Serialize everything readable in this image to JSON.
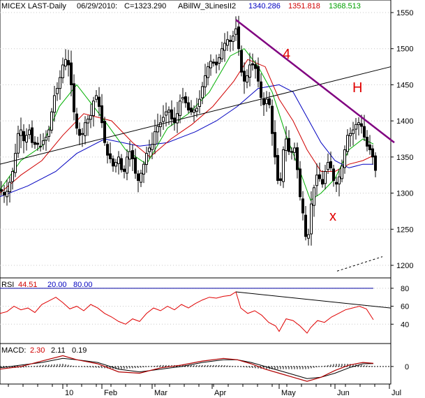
{
  "header": {
    "symbol": "MICEX LAST-Daily",
    "date": "06/29/2010:",
    "close": "C=1323.290",
    "indicator_name": "ABillW_3LinesII2",
    "ind_blue": "1340.286",
    "ind_red": "1351.818",
    "ind_green": "1368.513"
  },
  "rsi_header": {
    "name": "RSI",
    "value": "44.51",
    "lower": "20.00",
    "upper": "80.00"
  },
  "macd_header": {
    "name": "MACD:",
    "macd": "2.30",
    "signal": "2.11",
    "hist": "0.19"
  },
  "colors": {
    "candle": "#000000",
    "ma_green": "#00b000",
    "ma_red": "#d00000",
    "ma_blue": "#0000c0",
    "trendline_resistance": "#800080",
    "annotation": "#e00000",
    "rsi_line": "#e00000",
    "rsi_upper_line": "#0000a0",
    "macd_line": "#b00000",
    "grid": "#c8c8c8"
  },
  "annotations": [
    "4",
    "H",
    "x"
  ],
  "chart_data": [
    {
      "type": "candlestick",
      "ylim": [
        1200,
        1550
      ],
      "y_ticks": [
        "1550",
        "1500",
        "1450",
        "1400",
        "1350",
        "1300",
        "1250",
        "1200"
      ],
      "x_ticks": [
        "10",
        "Feb",
        "Mar",
        "Apr",
        "May",
        "Jun",
        "Jul"
      ],
      "close_path": [
        [
          0,
          1305
        ],
        [
          4,
          1300
        ],
        [
          8,
          1295
        ],
        [
          12,
          1310
        ],
        [
          16,
          1320
        ],
        [
          20,
          1340
        ],
        [
          24,
          1370
        ],
        [
          28,
          1395
        ],
        [
          32,
          1380
        ],
        [
          36,
          1365
        ],
        [
          40,
          1395
        ],
        [
          44,
          1380
        ],
        [
          48,
          1360
        ],
        [
          52,
          1375
        ],
        [
          56,
          1360
        ],
        [
          60,
          1370
        ],
        [
          64,
          1375
        ],
        [
          68,
          1380
        ],
        [
          72,
          1395
        ],
        [
          76,
          1430
        ],
        [
          80,
          1440
        ],
        [
          84,
          1450
        ],
        [
          88,
          1470
        ],
        [
          92,
          1485
        ],
        [
          96,
          1485
        ],
        [
          100,
          1470
        ],
        [
          104,
          1430
        ],
        [
          108,
          1395
        ],
        [
          112,
          1385
        ],
        [
          116,
          1375
        ],
        [
          120,
          1390
        ],
        [
          124,
          1405
        ],
        [
          128,
          1400
        ],
        [
          132,
          1415
        ],
        [
          136,
          1440
        ],
        [
          140,
          1430
        ],
        [
          144,
          1410
        ],
        [
          148,
          1385
        ],
        [
          152,
          1355
        ],
        [
          156,
          1350
        ],
        [
          160,
          1345
        ],
        [
          164,
          1330
        ],
        [
          168,
          1355
        ],
        [
          172,
          1345
        ],
        [
          176,
          1320
        ],
        [
          180,
          1340
        ],
        [
          184,
          1360
        ],
        [
          188,
          1355
        ],
        [
          192,
          1340
        ],
        [
          196,
          1315
        ],
        [
          200,
          1320
        ],
        [
          204,
          1335
        ],
        [
          208,
          1345
        ],
        [
          212,
          1365
        ],
        [
          216,
          1360
        ],
        [
          220,
          1375
        ],
        [
          224,
          1395
        ],
        [
          228,
          1390
        ],
        [
          232,
          1405
        ],
        [
          236,
          1405
        ],
        [
          240,
          1420
        ],
        [
          244,
          1410
        ],
        [
          248,
          1395
        ],
        [
          252,
          1400
        ],
        [
          256,
          1420
        ],
        [
          260,
          1435
        ],
        [
          264,
          1430
        ],
        [
          268,
          1420
        ],
        [
          272,
          1410
        ],
        [
          276,
          1415
        ],
        [
          280,
          1415
        ],
        [
          284,
          1420
        ],
        [
          288,
          1440
        ],
        [
          292,
          1455
        ],
        [
          296,
          1470
        ],
        [
          300,
          1480
        ],
        [
          304,
          1485
        ],
        [
          308,
          1475
        ],
        [
          312,
          1480
        ],
        [
          316,
          1495
        ],
        [
          320,
          1505
        ],
        [
          324,
          1510
        ],
        [
          328,
          1515
        ],
        [
          332,
          1505
        ],
        [
          336,
          1530
        ],
        [
          340,
          1525
        ],
        [
          344,
          1475
        ],
        [
          348,
          1460
        ],
        [
          352,
          1450
        ],
        [
          356,
          1475
        ],
        [
          360,
          1480
        ],
        [
          364,
          1475
        ],
        [
          368,
          1470
        ],
        [
          372,
          1440
        ],
        [
          376,
          1425
        ],
        [
          380,
          1420
        ],
        [
          384,
          1440
        ],
        [
          388,
          1405
        ],
        [
          392,
          1360
        ],
        [
          396,
          1340
        ],
        [
          400,
          1295
        ],
        [
          404,
          1340
        ],
        [
          408,
          1380
        ],
        [
          412,
          1370
        ],
        [
          416,
          1345
        ],
        [
          420,
          1370
        ],
        [
          424,
          1355
        ],
        [
          428,
          1310
        ],
        [
          432,
          1280
        ],
        [
          436,
          1265
        ],
        [
          440,
          1215
        ],
        [
          444,
          1270
        ],
        [
          448,
          1300
        ],
        [
          452,
          1315
        ],
        [
          456,
          1335
        ],
        [
          460,
          1305
        ],
        [
          464,
          1320
        ],
        [
          468,
          1340
        ],
        [
          472,
          1345
        ],
        [
          476,
          1325
        ],
        [
          480,
          1310
        ],
        [
          484,
          1315
        ],
        [
          488,
          1330
        ],
        [
          492,
          1345
        ],
        [
          496,
          1375
        ],
        [
          500,
          1385
        ],
        [
          504,
          1380
        ],
        [
          508,
          1395
        ],
        [
          512,
          1395
        ],
        [
          516,
          1400
        ],
        [
          520,
          1385
        ],
        [
          524,
          1370
        ],
        [
          528,
          1360
        ],
        [
          532,
          1360
        ],
        [
          536,
          1340
        ],
        [
          540,
          1323
        ]
      ],
      "ma_green": [
        [
          0,
          1305
        ],
        [
          30,
          1345
        ],
        [
          60,
          1365
        ],
        [
          85,
          1420
        ],
        [
          110,
          1450
        ],
        [
          150,
          1400
        ],
        [
          180,
          1360
        ],
        [
          210,
          1340
        ],
        [
          240,
          1390
        ],
        [
          270,
          1410
        ],
        [
          300,
          1440
        ],
        [
          330,
          1490
        ],
        [
          350,
          1500
        ],
        [
          370,
          1475
        ],
        [
          390,
          1440
        ],
        [
          410,
          1380
        ],
        [
          430,
          1330
        ],
        [
          445,
          1290
        ],
        [
          460,
          1300
        ],
        [
          480,
          1320
        ],
        [
          500,
          1360
        ],
        [
          520,
          1375
        ],
        [
          535,
          1368
        ]
      ],
      "ma_red": [
        [
          0,
          1300
        ],
        [
          30,
          1325
        ],
        [
          60,
          1345
        ],
        [
          90,
          1380
        ],
        [
          120,
          1410
        ],
        [
          160,
          1400
        ],
        [
          190,
          1370
        ],
        [
          215,
          1350
        ],
        [
          245,
          1375
        ],
        [
          275,
          1395
        ],
        [
          305,
          1420
        ],
        [
          335,
          1455
        ],
        [
          355,
          1485
        ],
        [
          380,
          1475
        ],
        [
          400,
          1430
        ],
        [
          420,
          1400
        ],
        [
          440,
          1360
        ],
        [
          460,
          1330
        ],
        [
          480,
          1330
        ],
        [
          500,
          1340
        ],
        [
          520,
          1345
        ],
        [
          535,
          1352
        ]
      ],
      "ma_blue": [
        [
          0,
          1295
        ],
        [
          40,
          1310
        ],
        [
          80,
          1330
        ],
        [
          110,
          1355
        ],
        [
          150,
          1375
        ],
        [
          200,
          1365
        ],
        [
          240,
          1370
        ],
        [
          280,
          1385
        ],
        [
          310,
          1400
        ],
        [
          340,
          1420
        ],
        [
          370,
          1445
        ],
        [
          400,
          1450
        ],
        [
          420,
          1440
        ],
        [
          440,
          1405
        ],
        [
          460,
          1370
        ],
        [
          480,
          1345
        ],
        [
          500,
          1335
        ],
        [
          520,
          1340
        ],
        [
          535,
          1340
        ]
      ],
      "support_line": [
        [
          0,
          1340
        ],
        [
          560,
          1475
        ]
      ],
      "resistance_line": [
        [
          338,
          1540
        ],
        [
          565,
          1370
        ]
      ],
      "dashed_line": [
        [
          483,
          1192
        ],
        [
          548,
          1212
        ]
      ]
    },
    {
      "type": "line",
      "name": "RSI",
      "ylim": [
        20,
        90
      ],
      "y_ticks": [
        "80",
        "60",
        "40"
      ],
      "upper_level": 80,
      "values": [
        [
          0,
          52
        ],
        [
          10,
          54
        ],
        [
          20,
          60
        ],
        [
          30,
          56
        ],
        [
          40,
          58
        ],
        [
          50,
          53
        ],
        [
          60,
          62
        ],
        [
          70,
          66
        ],
        [
          80,
          70
        ],
        [
          90,
          64
        ],
        [
          100,
          57
        ],
        [
          110,
          60
        ],
        [
          120,
          55
        ],
        [
          130,
          62
        ],
        [
          140,
          58
        ],
        [
          150,
          52
        ],
        [
          160,
          48
        ],
        [
          170,
          43
        ],
        [
          180,
          40
        ],
        [
          190,
          46
        ],
        [
          200,
          43
        ],
        [
          210,
          52
        ],
        [
          220,
          58
        ],
        [
          230,
          55
        ],
        [
          240,
          60
        ],
        [
          250,
          56
        ],
        [
          260,
          62
        ],
        [
          270,
          58
        ],
        [
          280,
          63
        ],
        [
          290,
          67
        ],
        [
          300,
          70
        ],
        [
          310,
          69
        ],
        [
          320,
          71
        ],
        [
          330,
          72
        ],
        [
          338,
          76
        ],
        [
          345,
          58
        ],
        [
          355,
          52
        ],
        [
          365,
          55
        ],
        [
          375,
          50
        ],
        [
          385,
          42
        ],
        [
          395,
          38
        ],
        [
          400,
          32
        ],
        [
          410,
          46
        ],
        [
          420,
          44
        ],
        [
          430,
          38
        ],
        [
          440,
          30
        ],
        [
          445,
          36
        ],
        [
          455,
          44
        ],
        [
          465,
          42
        ],
        [
          475,
          48
        ],
        [
          485,
          52
        ],
        [
          495,
          56
        ],
        [
          505,
          58
        ],
        [
          515,
          60
        ],
        [
          525,
          57
        ],
        [
          535,
          45
        ]
      ],
      "trend_line": [
        [
          338,
          76
        ],
        [
          560,
          58
        ]
      ]
    },
    {
      "type": "line",
      "name": "MACD",
      "ylim": [
        -12,
        16
      ],
      "y_ticks": [
        "0"
      ],
      "macd": [
        [
          0,
          -2
        ],
        [
          30,
          0
        ],
        [
          60,
          4
        ],
        [
          90,
          8
        ],
        [
          110,
          5
        ],
        [
          140,
          2
        ],
        [
          170,
          -4
        ],
        [
          200,
          -5
        ],
        [
          230,
          -1
        ],
        [
          260,
          1
        ],
        [
          290,
          4
        ],
        [
          320,
          6
        ],
        [
          340,
          5
        ],
        [
          360,
          2
        ],
        [
          380,
          -2
        ],
        [
          400,
          -5
        ],
        [
          420,
          -8
        ],
        [
          440,
          -11
        ],
        [
          460,
          -8
        ],
        [
          480,
          -3
        ],
        [
          500,
          1
        ],
        [
          520,
          3
        ],
        [
          535,
          2.3
        ]
      ],
      "signal": [
        [
          0,
          -1
        ],
        [
          30,
          1
        ],
        [
          60,
          3
        ],
        [
          90,
          6
        ],
        [
          110,
          5
        ],
        [
          140,
          3
        ],
        [
          170,
          -2
        ],
        [
          200,
          -4
        ],
        [
          230,
          -2
        ],
        [
          260,
          0
        ],
        [
          290,
          3
        ],
        [
          320,
          5
        ],
        [
          340,
          5
        ],
        [
          360,
          3
        ],
        [
          380,
          0
        ],
        [
          400,
          -3
        ],
        [
          420,
          -6
        ],
        [
          440,
          -9
        ],
        [
          460,
          -8
        ],
        [
          480,
          -5
        ],
        [
          500,
          -1
        ],
        [
          520,
          2
        ],
        [
          535,
          2.11
        ]
      ]
    }
  ]
}
